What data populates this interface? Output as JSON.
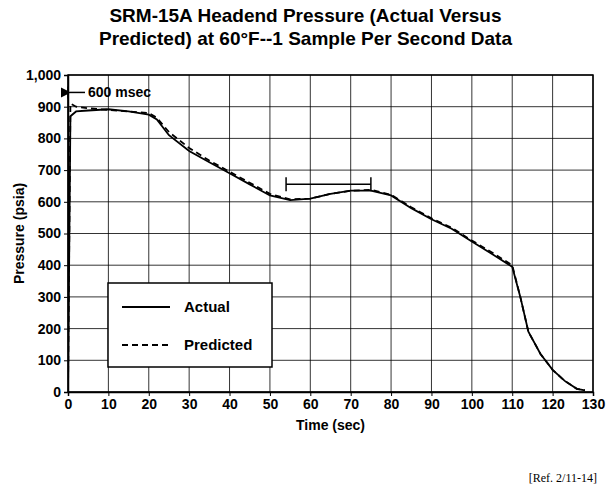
{
  "chart_data": {
    "type": "line",
    "title": [
      "SRM-15A Headend Pressure (Actual Versus",
      "Predicted) at 60°F--1 Sample Per Second Data"
    ],
    "x_label": "Time (sec)",
    "y_label": "Pressure (psia)",
    "x": [
      0,
      0.6,
      2,
      5,
      10,
      15,
      20,
      22,
      25,
      30,
      35,
      40,
      45,
      50,
      55,
      60,
      65,
      70,
      75,
      80,
      85,
      90,
      95,
      100,
      105,
      110,
      112,
      114,
      117,
      120,
      123,
      126,
      128
    ],
    "series": [
      {
        "name": "Actual",
        "color": "#000000",
        "line_style": "solid",
        "values": [
          0,
          870,
          885,
          888,
          892,
          885,
          875,
          860,
          810,
          760,
          725,
          690,
          655,
          620,
          605,
          610,
          625,
          635,
          635,
          620,
          580,
          545,
          515,
          475,
          435,
          395,
          300,
          190,
          120,
          70,
          35,
          10,
          5
        ]
      },
      {
        "name": "Predicted",
        "color": "#000000",
        "line_style": "dashed",
        "values": [
          0,
          910,
          900,
          895,
          890,
          885,
          880,
          865,
          820,
          770,
          730,
          695,
          660,
          625,
          608,
          610,
          625,
          635,
          638,
          622,
          583,
          548,
          518,
          478,
          440,
          400,
          300,
          190,
          120,
          70,
          35,
          10,
          5
        ]
      }
    ],
    "xlim": [
      0,
      130
    ],
    "xticks": [
      0,
      10,
      20,
      30,
      40,
      50,
      60,
      70,
      80,
      90,
      100,
      110,
      120,
      130
    ],
    "ylim": [
      0,
      1000
    ],
    "yticks": [
      0,
      100,
      200,
      300,
      400,
      500,
      600,
      700,
      800,
      900,
      {
        "value": 1000,
        "label": "1,000"
      }
    ],
    "grid": true,
    "legend": "lower left",
    "annotations": [
      {
        "text": "600 msec",
        "x": 0,
        "y": 945
      }
    ],
    "interval": {
      "x": [
        54,
        75
      ],
      "y": 655
    },
    "footnote": "[Ref. 2/11-14]"
  }
}
